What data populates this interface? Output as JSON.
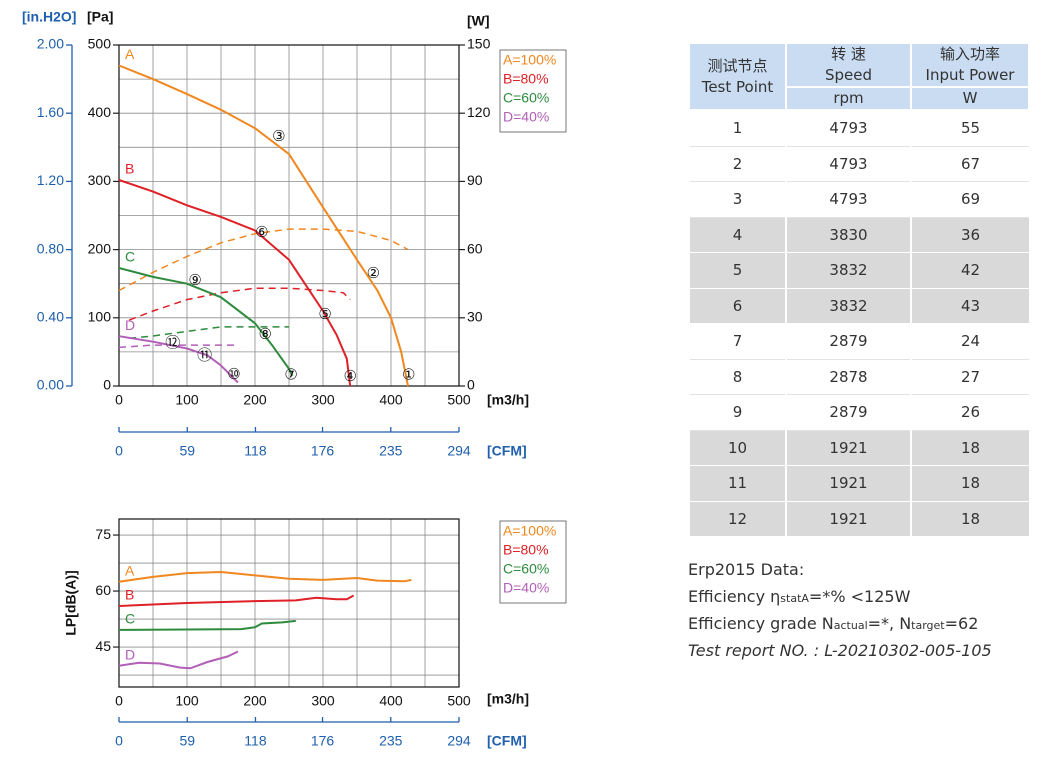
{
  "chart_data": [
    {
      "type": "line",
      "xlim": [
        0,
        500
      ],
      "xticks": [
        0,
        100,
        200,
        300,
        400,
        500
      ],
      "xgrid": [
        50,
        150,
        250,
        350,
        450
      ],
      "x2lim": [
        0,
        294
      ],
      "x2ticks": [
        0,
        59,
        118,
        176,
        235,
        294
      ],
      "ylim": [
        0,
        500
      ],
      "yticks": [
        0,
        100,
        200,
        300,
        400,
        500
      ],
      "ygrid": [
        50,
        150,
        250,
        350,
        450
      ],
      "y2lim": [
        0,
        150
      ],
      "y2ticks": [
        0,
        30,
        60,
        90,
        120,
        150
      ],
      "y3lim": [
        0,
        2.0
      ],
      "y3ticks": [
        {
          "value": 0,
          "label": "0.00"
        },
        {
          "value": 0.4,
          "label": "0.40"
        },
        {
          "value": 0.8,
          "label": "0.80"
        },
        {
          "value": 1.2,
          "label": "1.20"
        },
        {
          "value": 1.6,
          "label": "1.60"
        },
        {
          "value": 2.0,
          "label": "2.00"
        }
      ],
      "xlabel": "[m3/h]",
      "x2label": "[CFM]",
      "ylabel": "[Pa]",
      "y2label": "[W]",
      "y3label": "[in.H2O]",
      "series": [
        {
          "name": "A=100%",
          "label": "A",
          "color": "#f0871f",
          "x": [
            0,
            50,
            100,
            150,
            200,
            250,
            300,
            350,
            380,
            400,
            415,
            425
          ],
          "values": [
            470,
            450,
            428,
            405,
            378,
            340,
            262,
            185,
            140,
            100,
            50,
            0
          ]
        },
        {
          "name": "B=80%",
          "label": "B",
          "color": "#e02027",
          "x": [
            0,
            50,
            100,
            150,
            200,
            250,
            300,
            320,
            335,
            340
          ],
          "values": [
            302,
            285,
            265,
            248,
            228,
            185,
            110,
            75,
            40,
            0
          ]
        },
        {
          "name": "C=60%",
          "label": "C",
          "color": "#2e8b3e",
          "x": [
            0,
            50,
            100,
            150,
            200,
            225,
            250,
            255
          ],
          "values": [
            173,
            160,
            150,
            130,
            92,
            60,
            25,
            15
          ]
        },
        {
          "name": "D=40%",
          "label": "D",
          "color": "#b25fb8",
          "x": [
            0,
            50,
            100,
            130,
            150,
            165,
            175
          ],
          "values": [
            73,
            65,
            55,
            45,
            30,
            15,
            5
          ]
        }
      ],
      "power_series": [
        {
          "axis": "y2",
          "color": "#f0871f",
          "x": [
            0,
            50,
            100,
            150,
            200,
            250,
            300,
            350,
            400,
            425
          ],
          "values": [
            42,
            50,
            57,
            63,
            67,
            69,
            69,
            68,
            64,
            60
          ]
        },
        {
          "axis": "y2",
          "color": "#e02027",
          "x": [
            15,
            50,
            100,
            150,
            200,
            250,
            300,
            330,
            340
          ],
          "values": [
            29,
            33,
            38,
            41,
            43,
            43,
            42,
            41,
            38
          ]
        },
        {
          "axis": "y2",
          "color": "#2e8b3e",
          "x": [
            15,
            50,
            100,
            150,
            200,
            250
          ],
          "values": [
            21,
            22,
            24,
            26,
            26,
            26
          ]
        },
        {
          "axis": "y2",
          "color": "#b25fb8",
          "x": [
            0,
            50,
            100,
            175
          ],
          "values": [
            17,
            18,
            18,
            18
          ]
        }
      ],
      "annotations": [
        {
          "text": "①",
          "x": 426,
          "y": 15
        },
        {
          "text": "②",
          "x": 374,
          "y": 164
        },
        {
          "text": "③",
          "x": 235,
          "y": 365
        },
        {
          "text": "④",
          "x": 340,
          "y": 13
        },
        {
          "text": "⑤",
          "x": 303,
          "y": 104
        },
        {
          "text": "⑥",
          "x": 210,
          "y": 224
        },
        {
          "text": "⑦",
          "x": 253,
          "y": 15
        },
        {
          "text": "⑧",
          "x": 215,
          "y": 75
        },
        {
          "text": "⑨",
          "x": 112,
          "y": 154
        },
        {
          "text": "⑩",
          "x": 169,
          "y": 16
        },
        {
          "text": "⑪",
          "x": 126,
          "y": 44
        },
        {
          "text": "⑫",
          "x": 79,
          "y": 62
        }
      ]
    },
    {
      "type": "line",
      "xlim": [
        0,
        500
      ],
      "xticks": [
        0,
        100,
        200,
        300,
        400,
        500
      ],
      "xgrid": [
        50,
        150,
        250,
        350,
        450
      ],
      "x2lim": [
        0,
        294
      ],
      "x2ticks": [
        0,
        59,
        118,
        176,
        235,
        294
      ],
      "ylim": [
        34.3,
        79.3
      ],
      "yticks": [
        45,
        60,
        75
      ],
      "ygrid": [
        37.5,
        52.5,
        67.5
      ],
      "xlabel": "[m3/h]",
      "x2label": "[CFM]",
      "ylabel": "LP[dB(A)]",
      "series": [
        {
          "name": "A=100%",
          "label": "A",
          "color": "#f0871f",
          "x": [
            0,
            50,
            100,
            150,
            200,
            250,
            300,
            350,
            380,
            420,
            430
          ],
          "values": [
            62.5,
            63.8,
            64.8,
            65.1,
            64.2,
            63.3,
            63.0,
            63.5,
            62.8,
            62.6,
            63.0
          ]
        },
        {
          "name": "B=80%",
          "label": "B",
          "color": "#e02027",
          "x": [
            0,
            100,
            200,
            260,
            290,
            320,
            335,
            345
          ],
          "values": [
            56.0,
            56.8,
            57.3,
            57.5,
            58.2,
            57.8,
            57.8,
            58.8
          ]
        },
        {
          "name": "C=60%",
          "label": "C",
          "color": "#2e8b3e",
          "x": [
            0,
            100,
            180,
            200,
            210,
            240,
            260
          ],
          "values": [
            49.6,
            49.7,
            49.8,
            50.3,
            51.3,
            51.6,
            52.0
          ]
        },
        {
          "name": "D=40%",
          "label": "D",
          "color": "#b25fb8",
          "x": [
            0,
            30,
            60,
            90,
            105,
            130,
            160,
            175
          ],
          "values": [
            40.0,
            40.8,
            40.6,
            39.5,
            39.3,
            41.0,
            42.5,
            43.8
          ]
        }
      ]
    }
  ],
  "table": {
    "header": {
      "point": [
        "测试节点",
        "Test Point"
      ],
      "speed": [
        "转 速",
        "Speed"
      ],
      "power": [
        "输入功率",
        "Input Power"
      ]
    },
    "units": [
      "rpm",
      "W"
    ],
    "rows": [
      [
        1,
        4793,
        55
      ],
      [
        2,
        4793,
        67
      ],
      [
        3,
        4793,
        69
      ],
      [
        4,
        3830,
        36
      ],
      [
        5,
        3832,
        42
      ],
      [
        6,
        3832,
        43
      ],
      [
        7,
        2879,
        24
      ],
      [
        8,
        2878,
        27
      ],
      [
        9,
        2879,
        26
      ],
      [
        10,
        1921,
        18
      ],
      [
        11,
        1921,
        18
      ],
      [
        12,
        1921,
        18
      ]
    ]
  },
  "erp": {
    "title": "Erp2015  Data:",
    "efficiency": [
      "Efficiency η",
      "statA",
      "=*%  <125W"
    ],
    "grade": [
      "Efficiency grade N",
      "actual",
      "=*, N",
      "target",
      "=62"
    ],
    "report": "Test report NO. : L-20210302-005-105"
  }
}
